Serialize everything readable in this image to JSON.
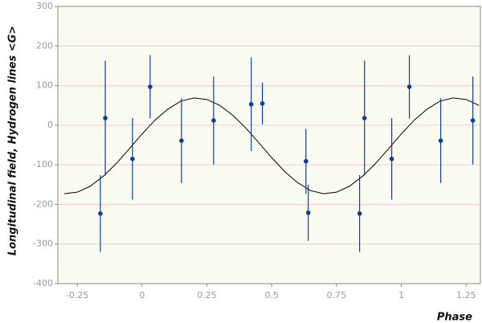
{
  "chart_data": {
    "type": "scatter",
    "x_label": "Phase",
    "y_label": "Longitudinal field, Hydrogen lines <G>",
    "xlim": [
      -0.325,
      1.305
    ],
    "ylim": [
      -400,
      300
    ],
    "xticks": [
      -0.25,
      0,
      0.25,
      0.5,
      0.75,
      1,
      1.25
    ],
    "yticks": [
      -400,
      -300,
      -200,
      -100,
      0,
      100,
      200,
      300
    ],
    "grid": true,
    "grid_color": "#f6c8d0",
    "plot_background": "#f9fbf1",
    "series": [
      {
        "type": "line",
        "color": "#000000",
        "x": [
          -0.3,
          -0.25,
          -0.2,
          -0.15,
          -0.1,
          -0.05,
          0,
          0.05,
          0.1,
          0.15,
          0.2,
          0.25,
          0.3,
          0.35,
          0.4,
          0.45,
          0.5,
          0.55,
          0.6,
          0.65,
          0.7,
          0.75,
          0.8,
          0.85,
          0.9,
          0.95,
          1,
          1.05,
          1.1,
          1.15,
          1.2,
          1.25,
          1.3
        ],
        "values": [
          -173,
          -169,
          -154,
          -129,
          -97,
          -60,
          -22,
          13,
          41,
          61,
          69,
          65,
          50,
          25,
          -7,
          -44,
          -82,
          -117,
          -145,
          -165,
          -173,
          -169,
          -154,
          -129,
          -97,
          -60,
          -22,
          13,
          41,
          61,
          69,
          65,
          50
        ]
      },
      {
        "type": "errorbar",
        "color": "#0a3d9c",
        "x": [
          -0.161,
          -0.142,
          -0.037,
          0.031,
          0.152,
          0.276,
          0.421,
          0.464,
          0.632,
          0.641,
          0.839,
          0.858,
          0.963,
          1.031,
          1.152,
          1.276
        ],
        "values": [
          -223,
          18,
          -85,
          97,
          -39,
          12,
          53,
          55,
          -91,
          -221,
          -223,
          18,
          -85,
          97,
          -39,
          12
        ],
        "errors": [
          97,
          145,
          103,
          80,
          107,
          111,
          118,
          53,
          82,
          71,
          97,
          145,
          103,
          80,
          107,
          111
        ]
      }
    ]
  }
}
